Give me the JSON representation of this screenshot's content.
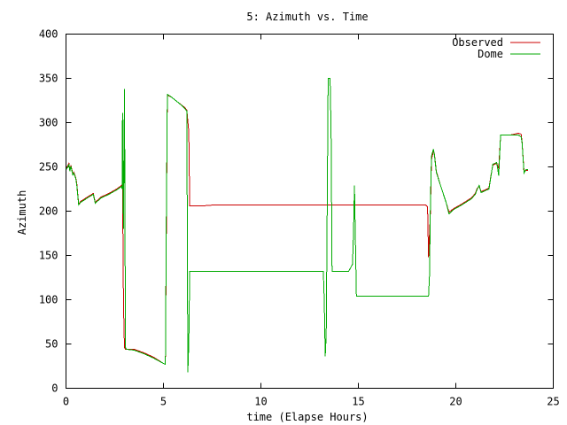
{
  "chart_data": {
    "type": "line",
    "title": "5: Azimuth vs. Time",
    "xlabel": "time (Elapse Hours)",
    "ylabel": "Azimuth",
    "xlim": [
      0,
      25
    ],
    "ylim": [
      0,
      400
    ],
    "xticks": [
      0,
      5,
      10,
      15,
      20,
      25
    ],
    "yticks": [
      0,
      50,
      100,
      150,
      200,
      250,
      300,
      350,
      400
    ],
    "grid": false,
    "legend_position": "top-right",
    "series": [
      {
        "name": "Observed",
        "color": "#cc0000",
        "points": [
          [
            0.0,
            247
          ],
          [
            0.1,
            252
          ],
          [
            0.15,
            254
          ],
          [
            0.2,
            246
          ],
          [
            0.25,
            252
          ],
          [
            0.35,
            242
          ],
          [
            0.4,
            244
          ],
          [
            0.5,
            238
          ],
          [
            0.55,
            232
          ],
          [
            0.65,
            208
          ],
          [
            0.75,
            211
          ],
          [
            0.9,
            213
          ],
          [
            1.1,
            216
          ],
          [
            1.4,
            220
          ],
          [
            1.5,
            210
          ],
          [
            1.6,
            212
          ],
          [
            1.8,
            216
          ],
          [
            2.2,
            220
          ],
          [
            2.6,
            225
          ],
          [
            2.85,
            229
          ],
          [
            2.9,
            231
          ],
          [
            2.95,
            95
          ],
          [
            3.0,
            46
          ],
          [
            3.05,
            44
          ],
          [
            3.5,
            44
          ],
          [
            4.0,
            40
          ],
          [
            4.5,
            35
          ],
          [
            5.0,
            28
          ],
          [
            5.1,
            27
          ],
          [
            5.15,
            180
          ],
          [
            5.2,
            331
          ],
          [
            5.4,
            329
          ],
          [
            5.8,
            322
          ],
          [
            6.1,
            317
          ],
          [
            6.2,
            314
          ],
          [
            6.3,
            290
          ],
          [
            6.35,
            206
          ],
          [
            6.5,
            206
          ],
          [
            7.0,
            206
          ],
          [
            7.6,
            207
          ],
          [
            10.0,
            207
          ],
          [
            12.0,
            207
          ],
          [
            14.0,
            207
          ],
          [
            16.0,
            207
          ],
          [
            18.0,
            207
          ],
          [
            18.45,
            207
          ],
          [
            18.55,
            205
          ],
          [
            18.6,
            148
          ],
          [
            18.7,
            200
          ],
          [
            18.75,
            258
          ],
          [
            18.85,
            268
          ],
          [
            18.9,
            265
          ],
          [
            19.0,
            245
          ],
          [
            19.2,
            230
          ],
          [
            19.5,
            210
          ],
          [
            19.65,
            199
          ],
          [
            19.9,
            203
          ],
          [
            20.3,
            208
          ],
          [
            20.8,
            215
          ],
          [
            21.0,
            220
          ],
          [
            21.1,
            226
          ],
          [
            21.2,
            228
          ],
          [
            21.3,
            222
          ],
          [
            21.5,
            224
          ],
          [
            21.7,
            226
          ],
          [
            21.8,
            240
          ],
          [
            21.9,
            252
          ],
          [
            22.1,
            254
          ],
          [
            22.2,
            248
          ],
          [
            22.3,
            286
          ],
          [
            22.8,
            286
          ],
          [
            23.2,
            288
          ],
          [
            23.35,
            287
          ],
          [
            23.4,
            278
          ],
          [
            23.5,
            245
          ],
          [
            23.6,
            246
          ],
          [
            23.7,
            246
          ]
        ]
      },
      {
        "name": "Dome",
        "color": "#00aa00",
        "points": [
          [
            0.0,
            247
          ],
          [
            0.1,
            250
          ],
          [
            0.15,
            253
          ],
          [
            0.2,
            245
          ],
          [
            0.25,
            251
          ],
          [
            0.35,
            241
          ],
          [
            0.4,
            243
          ],
          [
            0.5,
            237
          ],
          [
            0.55,
            230
          ],
          [
            0.65,
            207
          ],
          [
            0.75,
            210
          ],
          [
            0.9,
            212
          ],
          [
            1.1,
            215
          ],
          [
            1.4,
            219
          ],
          [
            1.5,
            209
          ],
          [
            1.6,
            211
          ],
          [
            1.8,
            215
          ],
          [
            2.2,
            219
          ],
          [
            2.6,
            224
          ],
          [
            2.85,
            228
          ],
          [
            2.88,
            225
          ],
          [
            2.9,
            311
          ],
          [
            2.95,
            180
          ],
          [
            3.0,
            338
          ],
          [
            3.05,
            46
          ],
          [
            3.1,
            44
          ],
          [
            3.5,
            43
          ],
          [
            4.0,
            39
          ],
          [
            4.5,
            34
          ],
          [
            5.0,
            28
          ],
          [
            5.1,
            27
          ],
          [
            5.15,
            200
          ],
          [
            5.2,
            332
          ],
          [
            5.4,
            329
          ],
          [
            5.8,
            322
          ],
          [
            6.1,
            316
          ],
          [
            6.2,
            313
          ],
          [
            6.25,
            18
          ],
          [
            6.3,
            50
          ],
          [
            6.35,
            132
          ],
          [
            6.5,
            132
          ],
          [
            8.0,
            132
          ],
          [
            10.0,
            132
          ],
          [
            12.0,
            132
          ],
          [
            13.2,
            132
          ],
          [
            13.25,
            100
          ],
          [
            13.3,
            36
          ],
          [
            13.35,
            60
          ],
          [
            13.4,
            200
          ],
          [
            13.45,
            350
          ],
          [
            13.55,
            350
          ],
          [
            13.6,
            290
          ],
          [
            13.65,
            132
          ],
          [
            14.0,
            132
          ],
          [
            14.5,
            132
          ],
          [
            14.7,
            140
          ],
          [
            14.75,
            175
          ],
          [
            14.8,
            229
          ],
          [
            14.85,
            165
          ],
          [
            14.9,
            104
          ],
          [
            16.0,
            104
          ],
          [
            18.0,
            104
          ],
          [
            18.5,
            104
          ],
          [
            18.6,
            104
          ],
          [
            18.65,
            127
          ],
          [
            18.7,
            212
          ],
          [
            18.75,
            262
          ],
          [
            18.85,
            270
          ],
          [
            18.9,
            264
          ],
          [
            19.0,
            244
          ],
          [
            19.2,
            230
          ],
          [
            19.5,
            210
          ],
          [
            19.65,
            197
          ],
          [
            19.9,
            202
          ],
          [
            20.3,
            207
          ],
          [
            20.8,
            214
          ],
          [
            21.0,
            219
          ],
          [
            21.1,
            225
          ],
          [
            21.2,
            229
          ],
          [
            21.3,
            221
          ],
          [
            21.5,
            223
          ],
          [
            21.7,
            225
          ],
          [
            21.8,
            239
          ],
          [
            21.9,
            253
          ],
          [
            22.1,
            255
          ],
          [
            22.2,
            240
          ],
          [
            22.3,
            286
          ],
          [
            22.8,
            286
          ],
          [
            23.2,
            286
          ],
          [
            23.35,
            284
          ],
          [
            23.4,
            277
          ],
          [
            23.5,
            243
          ],
          [
            23.6,
            247
          ],
          [
            23.7,
            247
          ]
        ]
      }
    ]
  }
}
